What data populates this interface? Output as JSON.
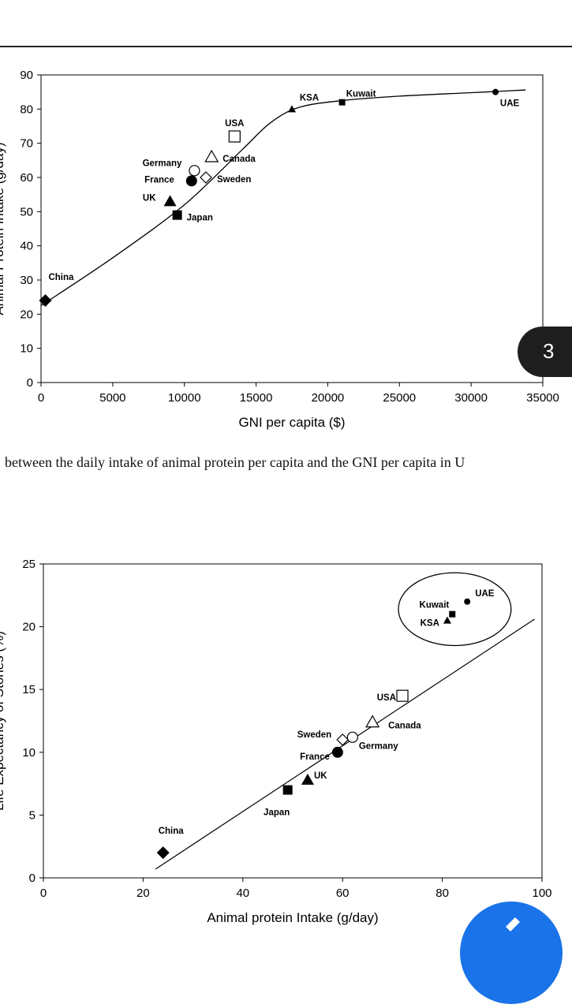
{
  "caption": "between the daily intake of animal protein per capita and the GNI per capita in U",
  "page_badge": "3",
  "fab_icon": "edit-icon",
  "colors": {
    "badge_bg": "#1e1e1e",
    "fab_bg": "#1a73e8",
    "line": "#000000"
  },
  "chart_data": [
    {
      "type": "scatter",
      "xlabel": "GNI per capita ($)",
      "ylabel": "Animal Protein Intake (g/day)",
      "xlim": [
        0,
        35000
      ],
      "ylim": [
        0,
        90
      ],
      "xticks": [
        0,
        5000,
        10000,
        15000,
        20000,
        25000,
        30000,
        35000
      ],
      "yticks": [
        0,
        10,
        20,
        30,
        40,
        50,
        60,
        70,
        80,
        90
      ],
      "grid": false,
      "points": [
        {
          "label": "China",
          "x": 300,
          "y": 24,
          "marker": "diamond-filled"
        },
        {
          "label": "UK",
          "x": 9000,
          "y": 53,
          "marker": "triangle-filled"
        },
        {
          "label": "Japan",
          "x": 9500,
          "y": 49,
          "marker": "square-filled"
        },
        {
          "label": "France",
          "x": 10500,
          "y": 59,
          "marker": "circle-filled"
        },
        {
          "label": "Germany",
          "x": 10700,
          "y": 62,
          "marker": "circle-open"
        },
        {
          "label": "Sweden",
          "x": 11500,
          "y": 60,
          "marker": "diamond-open"
        },
        {
          "label": "Canada",
          "x": 11900,
          "y": 66,
          "marker": "triangle-open"
        },
        {
          "label": "USA",
          "x": 13500,
          "y": 72,
          "marker": "square-open"
        },
        {
          "label": "KSA",
          "x": 17500,
          "y": 80,
          "marker": "triangle-filled-small"
        },
        {
          "label": "Kuwait",
          "x": 21000,
          "y": 82,
          "marker": "square-filled-small"
        },
        {
          "label": "UAE",
          "x": 31700,
          "y": 85,
          "marker": "circle-filled-small"
        }
      ],
      "trend_curve": [
        [
          0,
          22.5
        ],
        [
          5000,
          36.5
        ],
        [
          10000,
          52
        ],
        [
          14000,
          68
        ],
        [
          16000,
          76
        ],
        [
          18000,
          80.5
        ],
        [
          21000,
          82.5
        ],
        [
          25000,
          83.8
        ],
        [
          30000,
          84.8
        ],
        [
          33800,
          85.6
        ]
      ]
    },
    {
      "type": "scatter",
      "xlabel": "Animal protein Intake (g/day)",
      "ylabel": "Life Expectancy of Stones (%)",
      "xlim": [
        0,
        100
      ],
      "ylim": [
        0,
        25
      ],
      "xticks": [
        0,
        20,
        40,
        60,
        80,
        100
      ],
      "yticks": [
        0,
        5,
        10,
        15,
        20,
        25
      ],
      "grid": false,
      "points": [
        {
          "label": "China",
          "x": 24,
          "y": 2,
          "marker": "diamond-filled"
        },
        {
          "label": "Japan",
          "x": 49,
          "y": 7,
          "marker": "square-filled"
        },
        {
          "label": "UK",
          "x": 53,
          "y": 7.8,
          "marker": "triangle-filled"
        },
        {
          "label": "France",
          "x": 59,
          "y": 10,
          "marker": "circle-filled"
        },
        {
          "label": "Sweden",
          "x": 60,
          "y": 11,
          "marker": "diamond-open"
        },
        {
          "label": "Germany",
          "x": 62,
          "y": 11.2,
          "marker": "circle-open"
        },
        {
          "label": "Canada",
          "x": 66,
          "y": 12.4,
          "marker": "triangle-open"
        },
        {
          "label": "USA",
          "x": 72,
          "y": 14.5,
          "marker": "square-open"
        },
        {
          "label": "KSA",
          "x": 81,
          "y": 20.5,
          "marker": "triangle-filled-small"
        },
        {
          "label": "Kuwait",
          "x": 82,
          "y": 21,
          "marker": "square-filled-small"
        },
        {
          "label": "UAE",
          "x": 85,
          "y": 22,
          "marker": "circle-filled-small"
        }
      ],
      "trend_line": [
        [
          22.5,
          0.7
        ],
        [
          98.5,
          20.6
        ]
      ],
      "highlight_ellipse": {
        "cx": 82.5,
        "cy": 21.4,
        "rx": 11.3,
        "ry": 2.9
      }
    }
  ]
}
